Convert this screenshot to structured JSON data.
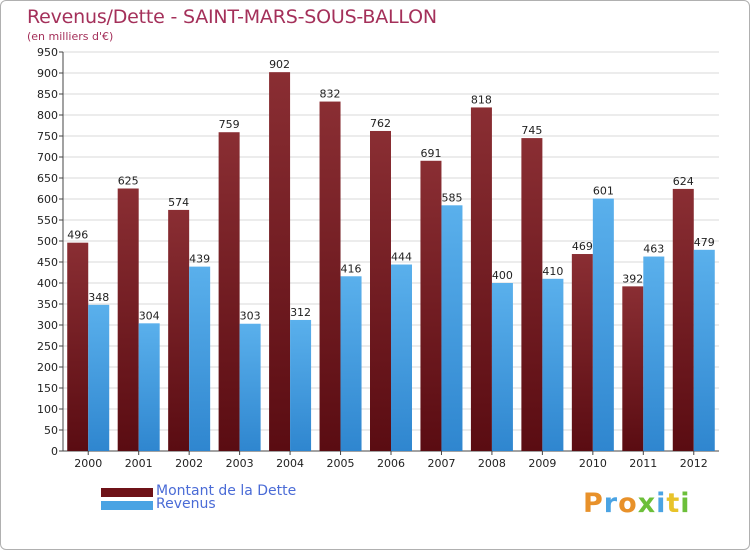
{
  "header": {
    "title": "Revenus/Dette - SAINT-MARS-SOUS-BALLON",
    "subtitle": "(en milliers d'€)"
  },
  "chart_data": {
    "type": "bar",
    "title": "Revenus/Dette - SAINT-MARS-SOUS-BALLON",
    "ylabel": "(en milliers d'€)",
    "xlabel": "",
    "ylim": [
      0,
      950
    ],
    "ytick_step": 50,
    "categories": [
      "2000",
      "2001",
      "2002",
      "2003",
      "2004",
      "2005",
      "2006",
      "2007",
      "2008",
      "2009",
      "2010",
      "2011",
      "2012"
    ],
    "series": [
      {
        "name": "Montant de la Dette",
        "color": "#7a1c22",
        "values": [
          496,
          625,
          574,
          759,
          902,
          832,
          762,
          691,
          818,
          745,
          469,
          392,
          624
        ]
      },
      {
        "name": "Revenus",
        "color": "#4aa3e3",
        "values": [
          348,
          304,
          439,
          303,
          312,
          416,
          444,
          585,
          400,
          410,
          601,
          463,
          479
        ]
      }
    ],
    "grid": true,
    "legend_position": "bottom-left"
  },
  "legend": {
    "items": [
      {
        "label": "Montant de la Dette",
        "color": "#6e1218"
      },
      {
        "label": "Revenus",
        "color": "#4aa3e3"
      }
    ]
  },
  "logo": {
    "letters": [
      {
        "ch": "P",
        "color": "#e8912a"
      },
      {
        "ch": "r",
        "color": "#4aa3e3"
      },
      {
        "ch": "o",
        "color": "#e8912a"
      },
      {
        "ch": "x",
        "color": "#6cbf3a"
      },
      {
        "ch": "i",
        "color": "#4aa3e3"
      },
      {
        "ch": "t",
        "color": "#e8c32a"
      },
      {
        "ch": "i",
        "color": "#6cbf3a"
      }
    ]
  }
}
